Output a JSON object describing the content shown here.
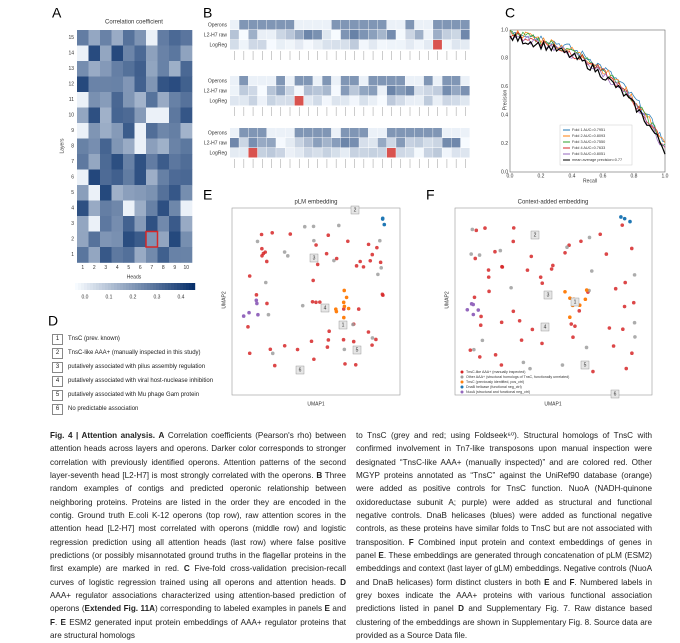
{
  "panels": {
    "A": {
      "letter": "A",
      "title": "Correlation coefficient",
      "x_label": "Heads",
      "y_label": "Layers",
      "x_ticks": [
        "1",
        "2",
        "3",
        "4",
        "5",
        "6",
        "7",
        "8",
        "9",
        "10"
      ],
      "y_ticks": [
        "1",
        "2",
        "3",
        "4",
        "5",
        "6",
        "7",
        "8",
        "9",
        "10",
        "11",
        "12",
        "13",
        "14",
        "15"
      ],
      "colorbar_ticks": [
        "0.0",
        "0.1",
        "0.2",
        "0.3",
        "0.4"
      ]
    },
    "B": {
      "letter": "B",
      "row_labels": [
        "Operons",
        "L2-H7 raw",
        "LogReg"
      ]
    },
    "C": {
      "letter": "C",
      "x_label": "Recall",
      "y_label": "Precision",
      "ticks": [
        "0.0",
        "0.2",
        "0.4",
        "0.6",
        "0.8",
        "1.0"
      ],
      "legend": [
        "Fold 1 AUC=0.7951",
        "Fold 2 AUC=0.8093",
        "Fold 3 AUC=0.7550",
        "Fold 4 AUC=0.7633",
        "Fold 5 AUC=0.8051",
        "mean average precision=0.77"
      ]
    },
    "D": {
      "letter": "D",
      "items": [
        {
          "num": "1",
          "text": "TnsC (prev. known)"
        },
        {
          "num": "2",
          "text": "TnsC-like AAA+ (manually inspected in this study)"
        },
        {
          "num": "3",
          "text": "putatively associated with pilus assembly regulation"
        },
        {
          "num": "4",
          "text": "putatively associated with viral host-nuclease inhibition"
        },
        {
          "num": "5",
          "text": "putatively associated with Mu phage Gam protein"
        },
        {
          "num": "6",
          "text": "No predictable association"
        }
      ]
    },
    "E": {
      "letter": "E",
      "title": "pLM embedding",
      "x_label": "UMAP1",
      "y_label": "UMAP2",
      "box_labels": [
        "2",
        "3",
        "4",
        "1",
        "5",
        "6"
      ]
    },
    "F": {
      "letter": "F",
      "title": "Context-added embedding",
      "x_label": "UMAP1",
      "y_label": "UMAP2",
      "box_labels": [
        "2",
        "3",
        "1",
        "4",
        "5",
        "6"
      ],
      "legend": [
        "TnsC-like AAA+ (manually inspected)",
        "Other AAA+ (structural homologs of TnsC, functionally unrelated)",
        "TnsC (previously identified, pos_ctrl)",
        "DnaB helicase (functional neg_ctrl)",
        "NuoA (structural and functional neg_ctrl)"
      ]
    }
  },
  "caption": {
    "left": [
      "Fig. 4 | Attention analysis.",
      "A",
      " Correlation coefficients (Pearson's rho) between attention heads across layers and operons. Darker color corresponds to stronger correlation with previously identified operons. Attention patterns of the second layer-seventh head [L2-H7] is most strongly correlated with the operons. ",
      "B",
      " Three random examples of contigs and predicted operonic relationship between neighboring proteins. Proteins are listed in the order they are encoded in the contig. Ground truth E.coli K-12 operons (top row), raw attention scores in the attention head [L2-H7] most correlated with operons (middle row) and logistic regression prediction using all attention heads (last row) where false positive predictions (or possibly misannotated ground truths in the flagellar proteins in the first example) are marked in red. ",
      "C",
      " Five-fold cross-validation precision-recall curves of logistic regression trained using all operons and attention heads. ",
      "D",
      " AAA+ regulator associations characterized using attention-based prediction of operons (",
      "Extended Fig. 11A",
      ") corresponding to labeled examples in panels ",
      "E",
      " and ",
      "F",
      ". ",
      "E",
      " ESM2 generated input protein embeddings of AAA+ regulator proteins that are structural homologs"
    ],
    "right": [
      "to TnsC (grey and red; using Foldseek⁶⁰). Structural homologs of TnsC with confirmed involvement in Tn7-like transposons upon manual inspection were designated “TnsC-like AAA+ (manually inspected)” and are colored red. Other MGYP proteins annotated as “TnsC” against the UniRef90 database (orange) were added as positive controls for TnsC function. NuoA (NADH-quinone oxidoreductase subunit A; purple) were added as structural and functional negative controls. DnaB helicases (blues) were added as functional negative controls, as these proteins have similar folds to TnsC but are not associated with transposition. ",
      "F",
      " Combined input protein and context embeddings of genes in panel ",
      "E",
      ". These embeddings are generated through concatenation of pLM (ESM2) embeddings and context (last layer of gLM) embeddings. Negative controls (NuoA and DnaB helicases) form distinct clusters in both ",
      "E",
      " and ",
      "F",
      ". Numbered labels in grey boxes indicate the AAA+ proteins with various functional association predictions listed in panel ",
      "D",
      " and Supplementary Fig. 7. Raw distance based clustering of the embeddings are shown in Supplementary Fig. 8. Source data are provided as a Source Data file."
    ]
  }
}
